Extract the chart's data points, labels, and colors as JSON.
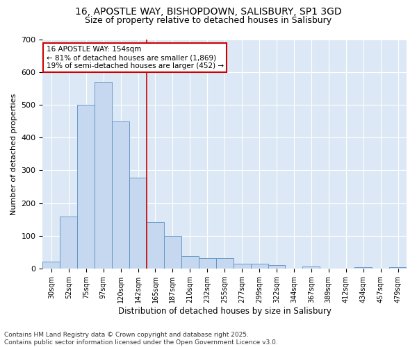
{
  "title": "16, APOSTLE WAY, BISHOPDOWN, SALISBURY, SP1 3GD",
  "subtitle": "Size of property relative to detached houses in Salisbury",
  "xlabel": "Distribution of detached houses by size in Salisbury",
  "ylabel": "Number of detached properties",
  "bar_labels": [
    "30sqm",
    "52sqm",
    "75sqm",
    "97sqm",
    "120sqm",
    "142sqm",
    "165sqm",
    "187sqm",
    "210sqm",
    "232sqm",
    "255sqm",
    "277sqm",
    "299sqm",
    "322sqm",
    "344sqm",
    "367sqm",
    "389sqm",
    "412sqm",
    "434sqm",
    "457sqm",
    "479sqm"
  ],
  "bar_values": [
    22,
    160,
    500,
    570,
    450,
    278,
    142,
    100,
    38,
    33,
    33,
    15,
    15,
    12,
    0,
    6,
    0,
    0,
    5,
    0,
    5
  ],
  "bar_color": "#c5d8f0",
  "bar_edge_color": "#5a8fc0",
  "vline_x": 5.5,
  "vline_color": "#cc0000",
  "annotation_text": "16 APOSTLE WAY: 154sqm\n← 81% of detached houses are smaller (1,869)\n19% of semi-detached houses are larger (452) →",
  "annotation_box_color": "#ffffff",
  "annotation_box_edge": "#cc0000",
  "ylim": [
    0,
    700
  ],
  "yticks": [
    0,
    100,
    200,
    300,
    400,
    500,
    600,
    700
  ],
  "bg_color": "#dce8f5",
  "fig_color": "#ffffff",
  "footer": "Contains HM Land Registry data © Crown copyright and database right 2025.\nContains public sector information licensed under the Open Government Licence v3.0.",
  "title_fontsize": 10,
  "subtitle_fontsize": 9,
  "annotation_fontsize": 7.5,
  "footer_fontsize": 6.5,
  "ylabel_fontsize": 8,
  "xlabel_fontsize": 8.5
}
